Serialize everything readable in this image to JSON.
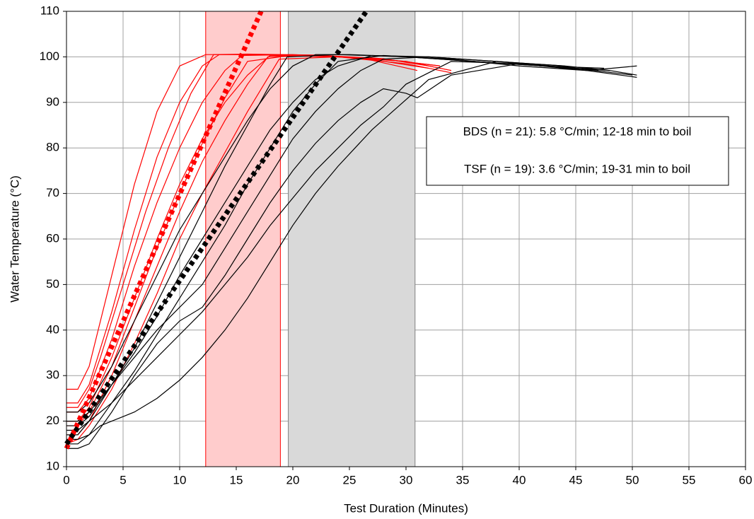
{
  "chart_data": {
    "type": "line",
    "x_label": "Test Duration (Minutes)",
    "y_label": "Water Temperature (°C)",
    "xlim": [
      0,
      60
    ],
    "ylim": [
      10,
      110
    ],
    "xticks": [
      0,
      5,
      10,
      15,
      20,
      25,
      30,
      35,
      40,
      45,
      50,
      55,
      60
    ],
    "yticks": [
      10,
      20,
      30,
      40,
      50,
      60,
      70,
      80,
      90,
      100,
      110
    ],
    "grid": true,
    "annotations": [
      "BDS (n = 21): 5.8 °C/min; 12-18 min to boil",
      "TSF (n = 19): 3.6 °C/min; 19-31 min to boil"
    ],
    "bands": [
      {
        "from": 12.3,
        "to": 18.9,
        "color": "#ffcccc",
        "edge": "#ff0000"
      },
      {
        "from": 19.6,
        "to": 30.8,
        "color": "#d9d9d9",
        "edge": "#808080"
      }
    ],
    "trend_lines": [
      {
        "color": "#ff0000",
        "x": [
          0,
          17.2
        ],
        "values": [
          14,
          110
        ]
      },
      {
        "color": "#000000",
        "x": [
          0,
          26.5
        ],
        "values": [
          15,
          110
        ]
      }
    ],
    "series": [
      {
        "color": "#ff0000",
        "x": [
          0,
          1,
          2,
          4,
          6,
          8,
          10,
          12.3,
          16,
          22,
          28,
          33
        ],
        "values": [
          27,
          27,
          32,
          52,
          72,
          88,
          98,
          100.5,
          100.5,
          100.2,
          99.5,
          98
        ]
      },
      {
        "color": "#ff0000",
        "x": [
          0,
          1,
          2,
          4,
          6,
          8,
          10,
          12,
          13.5,
          18,
          24,
          30,
          34
        ],
        "values": [
          24,
          24,
          28,
          44,
          62,
          78,
          90,
          98,
          100.5,
          100.5,
          100,
          99,
          97
        ]
      },
      {
        "color": "#ff0000",
        "x": [
          0,
          1,
          2,
          4,
          6,
          8,
          10,
          12,
          14,
          15.5,
          20,
          26,
          32
        ],
        "values": [
          22,
          22,
          25,
          38,
          54,
          68,
          80,
          90,
          97,
          100.3,
          100.5,
          99.8,
          97.5
        ]
      },
      {
        "color": "#ff0000",
        "x": [
          0,
          1,
          2,
          4,
          6,
          8,
          10,
          12,
          14,
          16,
          18,
          24,
          30,
          34
        ],
        "values": [
          20,
          20,
          23,
          34,
          47,
          60,
          72,
          82,
          90,
          96,
          100.3,
          100,
          99,
          97
        ]
      },
      {
        "color": "#ff0000",
        "x": [
          0,
          1,
          2,
          4,
          6,
          8,
          10,
          12,
          14,
          16,
          17.8,
          22,
          28,
          33
        ],
        "values": [
          17,
          17,
          20,
          30,
          42,
          54,
          66,
          77,
          86,
          94,
          100,
          100.3,
          99.5,
          98
        ]
      },
      {
        "color": "#ff0000",
        "x": [
          0,
          1,
          2,
          4,
          6,
          8,
          10,
          12,
          14,
          16,
          18.8,
          24,
          30,
          34
        ],
        "values": [
          15,
          16,
          19,
          27,
          37,
          48,
          60,
          70,
          79,
          88,
          99.5,
          100,
          98.5,
          96.5
        ]
      },
      {
        "color": "#ff0000",
        "x": [
          0,
          1,
          2,
          3,
          5,
          7,
          9,
          11,
          13,
          16,
          22,
          28,
          32
        ],
        "values": [
          23,
          23,
          27,
          34,
          50,
          66,
          80,
          92,
          100.5,
          100.6,
          100.4,
          99.6,
          98
        ]
      },
      {
        "color": "#ff0000",
        "x": [
          0,
          1,
          2,
          4,
          6,
          8,
          10,
          12,
          14,
          16,
          20,
          26,
          31
        ],
        "values": [
          19,
          19,
          22,
          32,
          45,
          58,
          70,
          81,
          91,
          99,
          100.4,
          99.8,
          97
        ]
      },
      {
        "color": "#000000",
        "x": [
          0,
          1,
          2,
          4,
          6,
          8,
          10,
          12,
          14,
          16,
          18,
          19.5,
          24,
          30,
          36,
          42,
          48,
          50.4
        ],
        "values": [
          17,
          17,
          20,
          28,
          36,
          46,
          56,
          66,
          76,
          85,
          94,
          100,
          100.5,
          100,
          99,
          98,
          97,
          96
        ]
      },
      {
        "color": "#000000",
        "x": [
          0,
          1,
          2,
          4,
          6,
          8,
          10,
          12,
          14,
          16,
          18,
          20,
          22,
          24,
          28,
          34,
          40,
          46,
          50.4
        ],
        "values": [
          15,
          15,
          17,
          24,
          31,
          39,
          47,
          55,
          63,
          72,
          80,
          88,
          94,
          99,
          100.3,
          99.5,
          98,
          97,
          95.5
        ]
      },
      {
        "color": "#000000",
        "x": [
          0,
          1,
          2,
          4,
          6,
          8,
          10,
          12,
          14,
          16,
          18,
          20,
          22,
          24,
          26,
          28,
          32,
          38,
          44,
          48
        ],
        "values": [
          20,
          20,
          22,
          28,
          34,
          40,
          45,
          50,
          58,
          66,
          74,
          82,
          88,
          93,
          97,
          99.5,
          100,
          99,
          98,
          97
        ]
      },
      {
        "color": "#000000",
        "x": [
          0,
          1,
          2,
          4,
          6,
          8,
          10,
          12,
          14,
          16,
          18,
          20,
          22,
          24,
          26,
          28,
          30,
          31,
          34,
          40,
          46,
          50.4
        ],
        "values": [
          14,
          14,
          15,
          22,
          30,
          37,
          42,
          45,
          52,
          60,
          68,
          75,
          81,
          86,
          90,
          93,
          92,
          91,
          96,
          98.5,
          97,
          98
        ]
      },
      {
        "color": "#000000",
        "x": [
          0,
          1,
          2,
          4,
          6,
          8,
          10,
          12,
          14,
          16,
          18,
          20,
          22,
          24,
          26,
          28,
          30,
          34,
          40,
          47
        ],
        "values": [
          18,
          18,
          20,
          24,
          29,
          34,
          39,
          44,
          50,
          56,
          63,
          69,
          75,
          80,
          85,
          89,
          94,
          99,
          98.5,
          97
        ]
      },
      {
        "color": "#000000",
        "x": [
          0,
          1,
          2,
          4,
          6,
          8,
          10,
          12,
          14,
          16,
          18,
          20,
          22,
          25,
          30,
          36,
          42,
          47.5
        ],
        "values": [
          22,
          22,
          24,
          32,
          42,
          52,
          62,
          70,
          78,
          86,
          93,
          98,
          100.5,
          100.5,
          100,
          99,
          98,
          97.5
        ]
      },
      {
        "color": "#000000",
        "x": [
          0,
          1,
          2,
          3,
          4,
          5,
          6,
          8,
          10,
          12,
          14,
          16,
          18,
          20,
          22,
          24,
          27,
          32,
          38,
          44
        ],
        "values": [
          16,
          16,
          17,
          19,
          20,
          21,
          22,
          25,
          29,
          34,
          40,
          47,
          55,
          63,
          70,
          76,
          84,
          95,
          99,
          98
        ]
      },
      {
        "color": "#000000",
        "x": [
          0,
          1,
          2,
          4,
          6,
          8,
          10,
          12,
          14,
          16,
          18,
          20,
          22,
          24,
          27,
          32,
          38,
          45,
          50
        ],
        "values": [
          19,
          19,
          21,
          28,
          35,
          43,
          52,
          60,
          68,
          76,
          84,
          90,
          95,
          98,
          100.3,
          100,
          99,
          97.5,
          96
        ]
      }
    ]
  }
}
